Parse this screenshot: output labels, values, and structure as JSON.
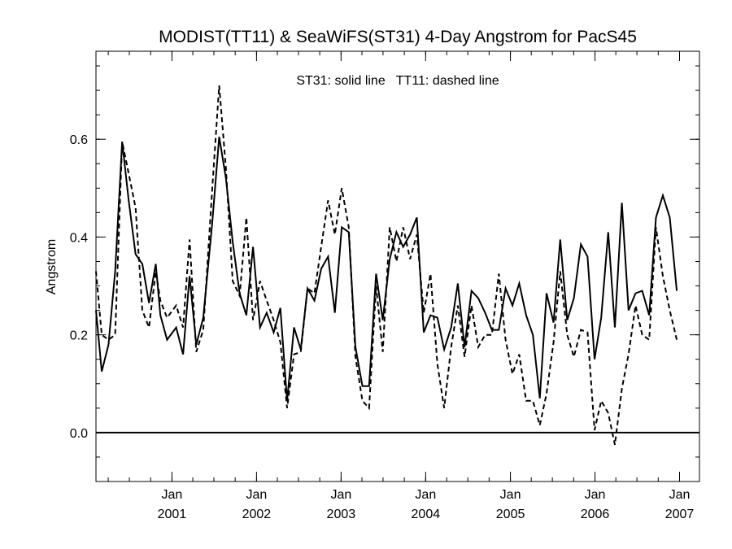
{
  "chart_data": {
    "type": "line",
    "title": "MODIST(TT11) & SeaWiFS(ST31) 4-Day Angstrom for PacS45",
    "legend_text": "ST31: solid line   TT11: dashed line",
    "xlabel": "",
    "ylabel": "Angstrom",
    "xlim": [
      "2000-02-08",
      "2007-03-28"
    ],
    "ylim": [
      -0.1,
      0.78
    ],
    "yticks": [
      {
        "value": 0.0,
        "label": "0.0"
      },
      {
        "value": 0.2,
        "label": "0.2"
      },
      {
        "value": 0.4,
        "label": "0.4"
      },
      {
        "value": 0.6,
        "label": "0.6"
      }
    ],
    "xticks": [
      {
        "date": "2001-01-01",
        "month": "Jan",
        "year": "2001"
      },
      {
        "date": "2002-01-01",
        "month": "Jan",
        "year": "2002"
      },
      {
        "date": "2003-01-01",
        "month": "Jan",
        "year": "2003"
      },
      {
        "date": "2004-01-01",
        "month": "Jan",
        "year": "2004"
      },
      {
        "date": "2005-01-01",
        "month": "Jan",
        "year": "2005"
      },
      {
        "date": "2006-01-01",
        "month": "Jan",
        "year": "2006"
      },
      {
        "date": "2007-01-01",
        "month": "Jan",
        "year": "2007"
      }
    ],
    "reference_line": 0.0,
    "grid": false,
    "series": [
      {
        "name": "ST31",
        "style": "solid",
        "color": "#000000",
        "points": [
          [
            "2000-02-08",
            0.25
          ],
          [
            "2000-03-04",
            0.125
          ],
          [
            "2000-04-02",
            0.18
          ],
          [
            "2000-05-01",
            0.33
          ],
          [
            "2000-05-31",
            0.595
          ],
          [
            "2000-06-28",
            0.475
          ],
          [
            "2000-07-28",
            0.365
          ],
          [
            "2000-08-26",
            0.345
          ],
          [
            "2000-09-24",
            0.265
          ],
          [
            "2000-10-23",
            0.345
          ],
          [
            "2000-11-12",
            0.24
          ],
          [
            "2000-12-11",
            0.19
          ],
          [
            "2001-01-19",
            0.215
          ],
          [
            "2001-02-18",
            0.16
          ],
          [
            "2001-03-18",
            0.32
          ],
          [
            "2001-04-16",
            0.18
          ],
          [
            "2001-05-16",
            0.235
          ],
          [
            "2001-06-24",
            0.43
          ],
          [
            "2001-07-24",
            0.605
          ],
          [
            "2001-08-22",
            0.52
          ],
          [
            "2001-09-20",
            0.39
          ],
          [
            "2001-10-20",
            0.285
          ],
          [
            "2001-11-18",
            0.24
          ],
          [
            "2001-12-17",
            0.38
          ],
          [
            "2002-01-16",
            0.215
          ],
          [
            "2002-02-14",
            0.245
          ],
          [
            "2002-03-16",
            0.205
          ],
          [
            "2002-04-14",
            0.255
          ],
          [
            "2002-05-13",
            0.065
          ],
          [
            "2002-06-12",
            0.215
          ],
          [
            "2002-07-11",
            0.17
          ],
          [
            "2002-08-09",
            0.295
          ],
          [
            "2002-09-08",
            0.27
          ],
          [
            "2002-10-07",
            0.335
          ],
          [
            "2002-11-06",
            0.36
          ],
          [
            "2002-12-05",
            0.245
          ],
          [
            "2003-01-04",
            0.42
          ],
          [
            "2003-02-03",
            0.41
          ],
          [
            "2003-03-04",
            0.175
          ],
          [
            "2003-04-03",
            0.095
          ],
          [
            "2003-05-02",
            0.095
          ],
          [
            "2003-06-01",
            0.325
          ],
          [
            "2003-06-30",
            0.23
          ],
          [
            "2003-07-30",
            0.355
          ],
          [
            "2003-08-28",
            0.41
          ],
          [
            "2003-09-26",
            0.38
          ],
          [
            "2003-10-26",
            0.405
          ],
          [
            "2003-11-24",
            0.44
          ],
          [
            "2003-12-24",
            0.205
          ],
          [
            "2004-01-22",
            0.24
          ],
          [
            "2004-02-21",
            0.235
          ],
          [
            "2004-03-21",
            0.17
          ],
          [
            "2004-04-20",
            0.215
          ],
          [
            "2004-05-19",
            0.305
          ],
          [
            "2004-06-17",
            0.175
          ],
          [
            "2004-07-17",
            0.29
          ],
          [
            "2004-08-15",
            0.275
          ],
          [
            "2004-09-14",
            0.245
          ],
          [
            "2004-10-13",
            0.21
          ],
          [
            "2004-11-12",
            0.21
          ],
          [
            "2004-12-11",
            0.295
          ],
          [
            "2005-01-10",
            0.26
          ],
          [
            "2005-02-08",
            0.305
          ],
          [
            "2005-03-10",
            0.24
          ],
          [
            "2005-04-08",
            0.2
          ],
          [
            "2005-05-08",
            0.07
          ],
          [
            "2005-06-06",
            0.285
          ],
          [
            "2005-07-06",
            0.225
          ],
          [
            "2005-08-04",
            0.395
          ],
          [
            "2005-09-03",
            0.23
          ],
          [
            "2005-10-02",
            0.275
          ],
          [
            "2005-11-01",
            0.385
          ],
          [
            "2005-11-30",
            0.36
          ],
          [
            "2005-12-30",
            0.15
          ],
          [
            "2006-01-28",
            0.235
          ],
          [
            "2006-02-27",
            0.41
          ],
          [
            "2006-03-28",
            0.215
          ],
          [
            "2006-04-27",
            0.47
          ],
          [
            "2006-05-26",
            0.25
          ],
          [
            "2006-06-25",
            0.285
          ],
          [
            "2006-07-24",
            0.29
          ],
          [
            "2006-08-23",
            0.24
          ],
          [
            "2006-09-21",
            0.44
          ],
          [
            "2006-10-21",
            0.485
          ],
          [
            "2006-11-20",
            0.44
          ],
          [
            "2006-12-20",
            0.29
          ]
        ]
      },
      {
        "name": "TT11",
        "style": "dashed",
        "color": "#000000",
        "points": [
          [
            "2000-02-08",
            0.33
          ],
          [
            "2000-03-04",
            0.2
          ],
          [
            "2000-04-02",
            0.19
          ],
          [
            "2000-05-01",
            0.2
          ],
          [
            "2000-05-31",
            0.595
          ],
          [
            "2000-06-28",
            0.53
          ],
          [
            "2000-07-28",
            0.46
          ],
          [
            "2000-08-26",
            0.25
          ],
          [
            "2000-09-24",
            0.215
          ],
          [
            "2000-10-23",
            0.33
          ],
          [
            "2000-11-12",
            0.27
          ],
          [
            "2000-12-11",
            0.235
          ],
          [
            "2001-01-19",
            0.26
          ],
          [
            "2001-02-18",
            0.215
          ],
          [
            "2001-03-18",
            0.395
          ],
          [
            "2001-04-16",
            0.165
          ],
          [
            "2001-05-16",
            0.21
          ],
          [
            "2001-06-24",
            0.5
          ],
          [
            "2001-07-24",
            0.71
          ],
          [
            "2001-08-22",
            0.54
          ],
          [
            "2001-09-20",
            0.31
          ],
          [
            "2001-10-20",
            0.28
          ],
          [
            "2001-11-18",
            0.44
          ],
          [
            "2001-12-17",
            0.23
          ],
          [
            "2002-01-16",
            0.31
          ],
          [
            "2002-02-14",
            0.27
          ],
          [
            "2002-03-16",
            0.23
          ],
          [
            "2002-04-14",
            0.185
          ],
          [
            "2002-05-13",
            0.05
          ],
          [
            "2002-06-12",
            0.16
          ],
          [
            "2002-07-11",
            0.165
          ],
          [
            "2002-08-09",
            0.295
          ],
          [
            "2002-09-08",
            0.285
          ],
          [
            "2002-10-07",
            0.38
          ],
          [
            "2002-11-06",
            0.475
          ],
          [
            "2002-12-05",
            0.405
          ],
          [
            "2003-01-04",
            0.5
          ],
          [
            "2003-02-03",
            0.42
          ],
          [
            "2003-03-04",
            0.155
          ],
          [
            "2003-04-03",
            0.065
          ],
          [
            "2003-05-02",
            0.05
          ],
          [
            "2003-06-01",
            0.3
          ],
          [
            "2003-06-30",
            0.165
          ],
          [
            "2003-07-30",
            0.42
          ],
          [
            "2003-08-28",
            0.35
          ],
          [
            "2003-09-26",
            0.42
          ],
          [
            "2003-10-26",
            0.355
          ],
          [
            "2003-11-24",
            0.405
          ],
          [
            "2003-12-24",
            0.245
          ],
          [
            "2004-01-22",
            0.325
          ],
          [
            "2004-02-21",
            0.14
          ],
          [
            "2004-03-21",
            0.05
          ],
          [
            "2004-04-20",
            0.175
          ],
          [
            "2004-05-19",
            0.26
          ],
          [
            "2004-06-17",
            0.155
          ],
          [
            "2004-07-17",
            0.26
          ],
          [
            "2004-08-15",
            0.175
          ],
          [
            "2004-09-14",
            0.2
          ],
          [
            "2004-10-13",
            0.2
          ],
          [
            "2004-11-12",
            0.325
          ],
          [
            "2004-12-11",
            0.19
          ],
          [
            "2005-01-10",
            0.12
          ],
          [
            "2005-02-08",
            0.16
          ],
          [
            "2005-03-10",
            0.065
          ],
          [
            "2005-04-08",
            0.065
          ],
          [
            "2005-05-08",
            0.015
          ],
          [
            "2005-06-06",
            0.08
          ],
          [
            "2005-07-06",
            0.185
          ],
          [
            "2005-08-04",
            0.33
          ],
          [
            "2005-09-03",
            0.2
          ],
          [
            "2005-10-02",
            0.155
          ],
          [
            "2005-11-01",
            0.21
          ],
          [
            "2005-11-30",
            0.205
          ],
          [
            "2005-12-30",
            0.005
          ],
          [
            "2006-01-28",
            0.065
          ],
          [
            "2006-02-27",
            0.04
          ],
          [
            "2006-03-28",
            -0.025
          ],
          [
            "2006-04-27",
            0.09
          ],
          [
            "2006-05-26",
            0.16
          ],
          [
            "2006-06-25",
            0.26
          ],
          [
            "2006-07-24",
            0.2
          ],
          [
            "2006-08-23",
            0.19
          ],
          [
            "2006-09-21",
            0.42
          ],
          [
            "2006-10-21",
            0.32
          ],
          [
            "2006-11-20",
            0.25
          ],
          [
            "2006-12-20",
            0.19
          ]
        ]
      }
    ]
  }
}
